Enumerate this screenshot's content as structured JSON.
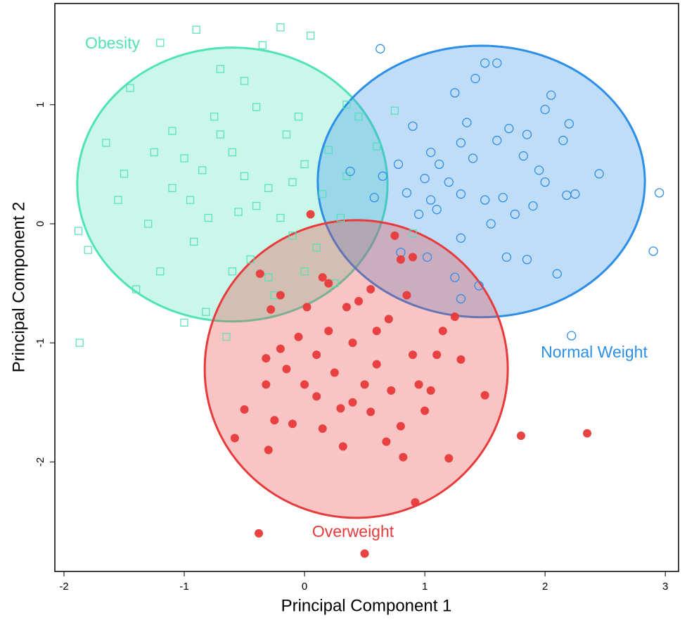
{
  "chart_data": {
    "type": "scatter",
    "xlabel": "Principal Component  1",
    "ylabel": "Principal Component  2",
    "xlim": [
      -2.076,
      3.11
    ],
    "ylim": [
      -2.92,
      1.85
    ],
    "xticks": [
      -2,
      -1,
      0,
      1,
      2,
      3
    ],
    "yticks": [
      -2,
      -1,
      0,
      1
    ],
    "series": [
      {
        "name": "Obesity",
        "color": "#4fe3b5",
        "marker": "square",
        "ellipse": {
          "cx": -0.6,
          "cy": 0.33,
          "rx": 1.29,
          "ry": 1.15
        },
        "x": [
          -1.88,
          -1.87,
          -1.65,
          -1.5,
          -1.45,
          -1.4,
          -1.3,
          -1.2,
          -1.2,
          -1.1,
          -1.0,
          -0.95,
          -0.9,
          -0.85,
          -0.82,
          -0.75,
          -0.7,
          -0.65,
          -0.6,
          -0.55,
          -0.5,
          -0.45,
          -0.4,
          -0.35,
          -0.3,
          -0.25,
          -0.2,
          -0.15,
          -0.1,
          -0.05,
          0.05,
          0.0,
          0.1,
          0.15,
          0.2,
          0.3,
          0.35,
          0.45,
          0.6,
          0.75,
          -1.1,
          -1.25,
          -0.8,
          -0.6,
          -1.0,
          -0.3,
          -0.1,
          -0.5,
          -0.7,
          -0.2,
          0.35,
          -1.8,
          -1.55,
          -0.92,
          0.9,
          0.25,
          -0.4,
          0.0
        ],
        "y": [
          -0.06,
          -1.0,
          0.68,
          0.42,
          1.14,
          -0.55,
          0.0,
          1.52,
          -0.4,
          0.78,
          -0.83,
          0.2,
          1.63,
          0.45,
          -0.74,
          0.9,
          1.3,
          -0.95,
          0.6,
          0.1,
          1.2,
          -0.3,
          0.98,
          1.5,
          0.3,
          -0.6,
          1.65,
          0.75,
          -0.1,
          0.9,
          1.58,
          0.5,
          -0.2,
          0.25,
          0.62,
          0.05,
          1.0,
          0.9,
          0.65,
          0.95,
          0.3,
          0.6,
          0.05,
          -0.4,
          0.55,
          -0.45,
          0.35,
          0.4,
          0.75,
          0.05,
          0.4,
          -0.22,
          0.2,
          -0.15,
          -0.08,
          -0.5,
          0.15,
          -0.4
        ]
      },
      {
        "name": "Normal Weight",
        "color": "#2d8ee8",
        "marker": "circle",
        "ellipse": {
          "cx": 1.47,
          "cy": 0.355,
          "rx": 1.36,
          "ry": 1.14
        },
        "x": [
          0.63,
          0.38,
          0.58,
          0.65,
          0.78,
          0.85,
          0.9,
          0.95,
          1.05,
          1.05,
          1.12,
          1.2,
          1.25,
          1.3,
          1.35,
          1.4,
          1.42,
          1.5,
          1.6,
          1.6,
          1.65,
          1.7,
          1.75,
          1.82,
          1.85,
          1.95,
          2.0,
          2.05,
          2.15,
          2.18,
          2.2,
          2.25,
          2.45,
          2.95,
          2.9,
          2.22,
          2.1,
          1.85,
          1.68,
          1.3,
          1.45,
          1.3,
          1.25,
          1.02,
          0.8,
          1.55,
          1.1,
          1.0,
          1.5,
          1.9,
          2.0,
          1.3
        ],
        "y": [
          1.47,
          0.44,
          0.22,
          0.4,
          0.5,
          0.26,
          0.82,
          0.08,
          0.6,
          0.2,
          0.5,
          0.35,
          1.1,
          0.25,
          0.85,
          0.55,
          1.22,
          1.35,
          0.7,
          1.35,
          0.22,
          0.8,
          0.08,
          0.57,
          0.75,
          0.45,
          0.96,
          1.08,
          0.7,
          0.24,
          0.84,
          0.25,
          0.42,
          0.26,
          -0.23,
          -0.94,
          -0.42,
          -0.3,
          -0.28,
          -0.12,
          -0.52,
          -0.63,
          -0.45,
          -0.28,
          -0.24,
          0.0,
          0.12,
          0.38,
          0.2,
          0.15,
          0.35,
          0.68
        ]
      },
      {
        "name": "Overweight",
        "color": "#e83a3a",
        "marker": "dot",
        "ellipse": {
          "cx": 0.43,
          "cy": -1.22,
          "rx": 1.26,
          "ry": 1.25
        },
        "x": [
          0.05,
          0.2,
          0.15,
          -0.37,
          -0.2,
          -0.28,
          0.02,
          0.75,
          0.8,
          0.9,
          0.55,
          -0.32,
          -0.32,
          -0.5,
          -0.58,
          -0.3,
          -0.25,
          -0.1,
          -0.15,
          0.0,
          0.1,
          0.15,
          0.3,
          0.32,
          0.4,
          0.45,
          0.5,
          0.55,
          0.6,
          0.68,
          0.72,
          0.8,
          0.82,
          0.9,
          0.95,
          1.0,
          1.05,
          1.1,
          1.2,
          1.25,
          1.3,
          1.5,
          1.8,
          2.35,
          0.92,
          0.5,
          -0.38,
          0.2,
          0.35,
          -0.05,
          0.7,
          0.25,
          -0.2,
          0.6,
          0.4,
          0.1,
          0.85,
          1.15
        ],
        "y": [
          0.08,
          -0.5,
          -0.45,
          -0.42,
          -0.6,
          -0.72,
          -0.7,
          -0.1,
          -0.3,
          -0.28,
          -0.55,
          -1.13,
          -1.35,
          -1.56,
          -1.8,
          -1.9,
          -1.65,
          -1.68,
          -1.22,
          -1.35,
          -1.1,
          -1.72,
          -1.55,
          -1.87,
          -1.0,
          -0.65,
          -1.35,
          -1.58,
          -1.18,
          -1.83,
          -1.4,
          -1.7,
          -1.96,
          -1.1,
          -1.35,
          -1.57,
          -1.4,
          -1.1,
          -1.97,
          -0.78,
          -1.14,
          -1.44,
          -1.78,
          -1.76,
          -2.34,
          -2.77,
          -2.6,
          -0.9,
          -0.7,
          -0.95,
          -0.8,
          -1.25,
          -1.05,
          -0.9,
          -1.5,
          -1.45,
          -0.6,
          -0.9
        ]
      }
    ]
  }
}
